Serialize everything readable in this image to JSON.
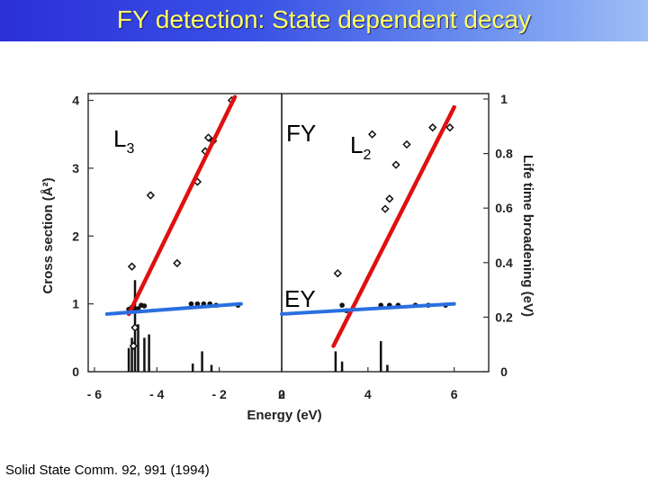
{
  "slide": {
    "title": "FY detection: State dependent decay",
    "citation": "Solid State Comm. 92, 991 (1994)"
  },
  "colors": {
    "title_background": "#3a52e6",
    "title_text": "#ffff66",
    "fy_fit_line": "#e01010",
    "ey_fit_line": "#2a6fe0"
  },
  "chart_data": {
    "type": "scatter",
    "xlabel": "Energy (eV)",
    "ylabel": "Cross section (Å²)",
    "y2label": "Life time broadening (eV)",
    "x_ticks": [
      "- 6",
      "- 4",
      "- 2",
      "0",
      "2",
      "4",
      "6"
    ],
    "y_ticks": [
      "0",
      "1",
      "2",
      "3",
      "4"
    ],
    "y2_ticks": [
      "0",
      "0.2",
      "0.4",
      "0.6",
      "0.8",
      "1"
    ],
    "panels": [
      {
        "name": "L3",
        "xlim": [
          -6.2,
          0
        ],
        "ylim": [
          0,
          4.1
        ]
      },
      {
        "name": "L2",
        "xlim": [
          2,
          6.8
        ],
        "ylim": [
          0,
          4.1
        ]
      }
    ],
    "annotations": {
      "L3": {
        "main": "L",
        "sub": "3"
      },
      "L2": {
        "main": "L",
        "sub": "2"
      },
      "FY": "FY",
      "EY": "EY"
    },
    "series": [
      {
        "panel": 0,
        "kind": "open",
        "points": [
          [
            -4.8,
            1.55
          ],
          [
            -4.7,
            0.65
          ],
          [
            -4.75,
            0.38
          ],
          [
            -4.2,
            2.6
          ],
          [
            -3.35,
            1.6
          ],
          [
            -2.7,
            2.8
          ],
          [
            -2.45,
            3.25
          ],
          [
            -2.35,
            3.45
          ],
          [
            -2.2,
            3.4
          ],
          [
            -1.6,
            4.0
          ]
        ]
      },
      {
        "panel": 0,
        "kind": "filled",
        "points": [
          [
            -4.9,
            0.92
          ],
          [
            -4.8,
            0.95
          ],
          [
            -4.7,
            0.9
          ],
          [
            -4.6,
            0.93
          ],
          [
            -4.5,
            0.98
          ],
          [
            -4.4,
            0.97
          ],
          [
            -2.9,
            1.0
          ],
          [
            -2.7,
            1.0
          ],
          [
            -2.5,
            1.0
          ],
          [
            -2.3,
            1.0
          ],
          [
            -2.1,
            0.98
          ],
          [
            -1.4,
            0.98
          ]
        ]
      },
      {
        "panel": 1,
        "kind": "open",
        "points": [
          [
            3.3,
            1.45
          ],
          [
            4.1,
            3.5
          ],
          [
            4.4,
            2.4
          ],
          [
            4.5,
            2.55
          ],
          [
            4.65,
            3.05
          ],
          [
            4.9,
            3.35
          ],
          [
            5.5,
            3.6
          ],
          [
            5.9,
            3.6
          ]
        ]
      },
      {
        "panel": 1,
        "kind": "filled",
        "points": [
          [
            3.4,
            0.98
          ],
          [
            3.5,
            0.9
          ],
          [
            4.3,
            0.98
          ],
          [
            4.5,
            0.98
          ],
          [
            4.7,
            0.98
          ],
          [
            5.1,
            0.98
          ],
          [
            5.4,
            0.98
          ],
          [
            5.8,
            0.98
          ]
        ]
      }
    ],
    "spectrum_sticks": [
      {
        "panel": 0,
        "x": -4.9,
        "y": 0.35
      },
      {
        "panel": 0,
        "x": -4.8,
        "y": 0.5
      },
      {
        "panel": 0,
        "x": -4.7,
        "y": 1.35
      },
      {
        "panel": 0,
        "x": -4.6,
        "y": 0.7
      },
      {
        "panel": 0,
        "x": -4.4,
        "y": 0.5
      },
      {
        "panel": 0,
        "x": -4.25,
        "y": 0.55
      },
      {
        "panel": 0,
        "x": -2.85,
        "y": 0.12
      },
      {
        "panel": 0,
        "x": -2.55,
        "y": 0.3
      },
      {
        "panel": 0,
        "x": -2.25,
        "y": 0.1
      },
      {
        "panel": 1,
        "x": 3.25,
        "y": 0.3
      },
      {
        "panel": 1,
        "x": 3.4,
        "y": 0.15
      },
      {
        "panel": 1,
        "x": 4.3,
        "y": 0.45
      },
      {
        "panel": 1,
        "x": 4.45,
        "y": 0.1
      }
    ],
    "fit_lines": [
      {
        "label": "FY",
        "panel": 0,
        "from": [
          -4.9,
          0.85
        ],
        "to": [
          -1.5,
          4.05
        ]
      },
      {
        "label": "EY",
        "panel": 0,
        "from": [
          -5.6,
          0.85
        ],
        "to": [
          -1.3,
          1.0
        ]
      },
      {
        "label": "FY",
        "panel": 1,
        "from": [
          3.2,
          0.38
        ],
        "to": [
          6.0,
          3.9
        ]
      },
      {
        "label": "EY",
        "panel": 1,
        "from": [
          2.0,
          0.85
        ],
        "to": [
          6.0,
          1.0
        ]
      }
    ]
  }
}
